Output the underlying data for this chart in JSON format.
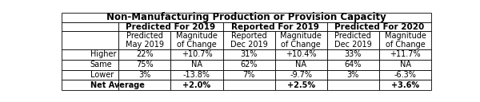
{
  "title": "Non-Manufacturing Production or Provision Capacity",
  "col_groups": [
    {
      "label": "Predicted For 2019",
      "cols": [
        "Predicted\nMay 2019",
        "Magnitude\nof Change"
      ]
    },
    {
      "label": "Reported For 2019",
      "cols": [
        "Reported\nDec 2019",
        "Magnitude\nof Change"
      ]
    },
    {
      "label": "Predicted For 2020",
      "cols": [
        "Predicted\nDec 2019",
        "Magnitude\nof Change"
      ]
    }
  ],
  "row_labels": [
    "Higher",
    "Same",
    "Lower",
    "Net Average"
  ],
  "data": [
    [
      "22%",
      "+10.7%",
      "31%",
      "+10.4%",
      "33%",
      "+11.7%"
    ],
    [
      "75%",
      "NA",
      "62%",
      "NA",
      "64%",
      "NA"
    ],
    [
      "3%",
      "-13.8%",
      "7%",
      "-9.7%",
      "3%",
      "-6.3%"
    ],
    [
      "",
      "+2.0%",
      "",
      "+2.5%",
      "",
      "+3.6%"
    ]
  ],
  "row_heights_raw": [
    14,
    13,
    26,
    15,
    15,
    15,
    15
  ],
  "col_widths_raw": [
    85,
    78,
    78,
    78,
    78,
    78,
    78
  ],
  "font_size_title": 8.5,
  "font_size_group": 7.5,
  "font_size_sub": 7.0,
  "font_size_data": 7.0,
  "border_lw": 0.6
}
